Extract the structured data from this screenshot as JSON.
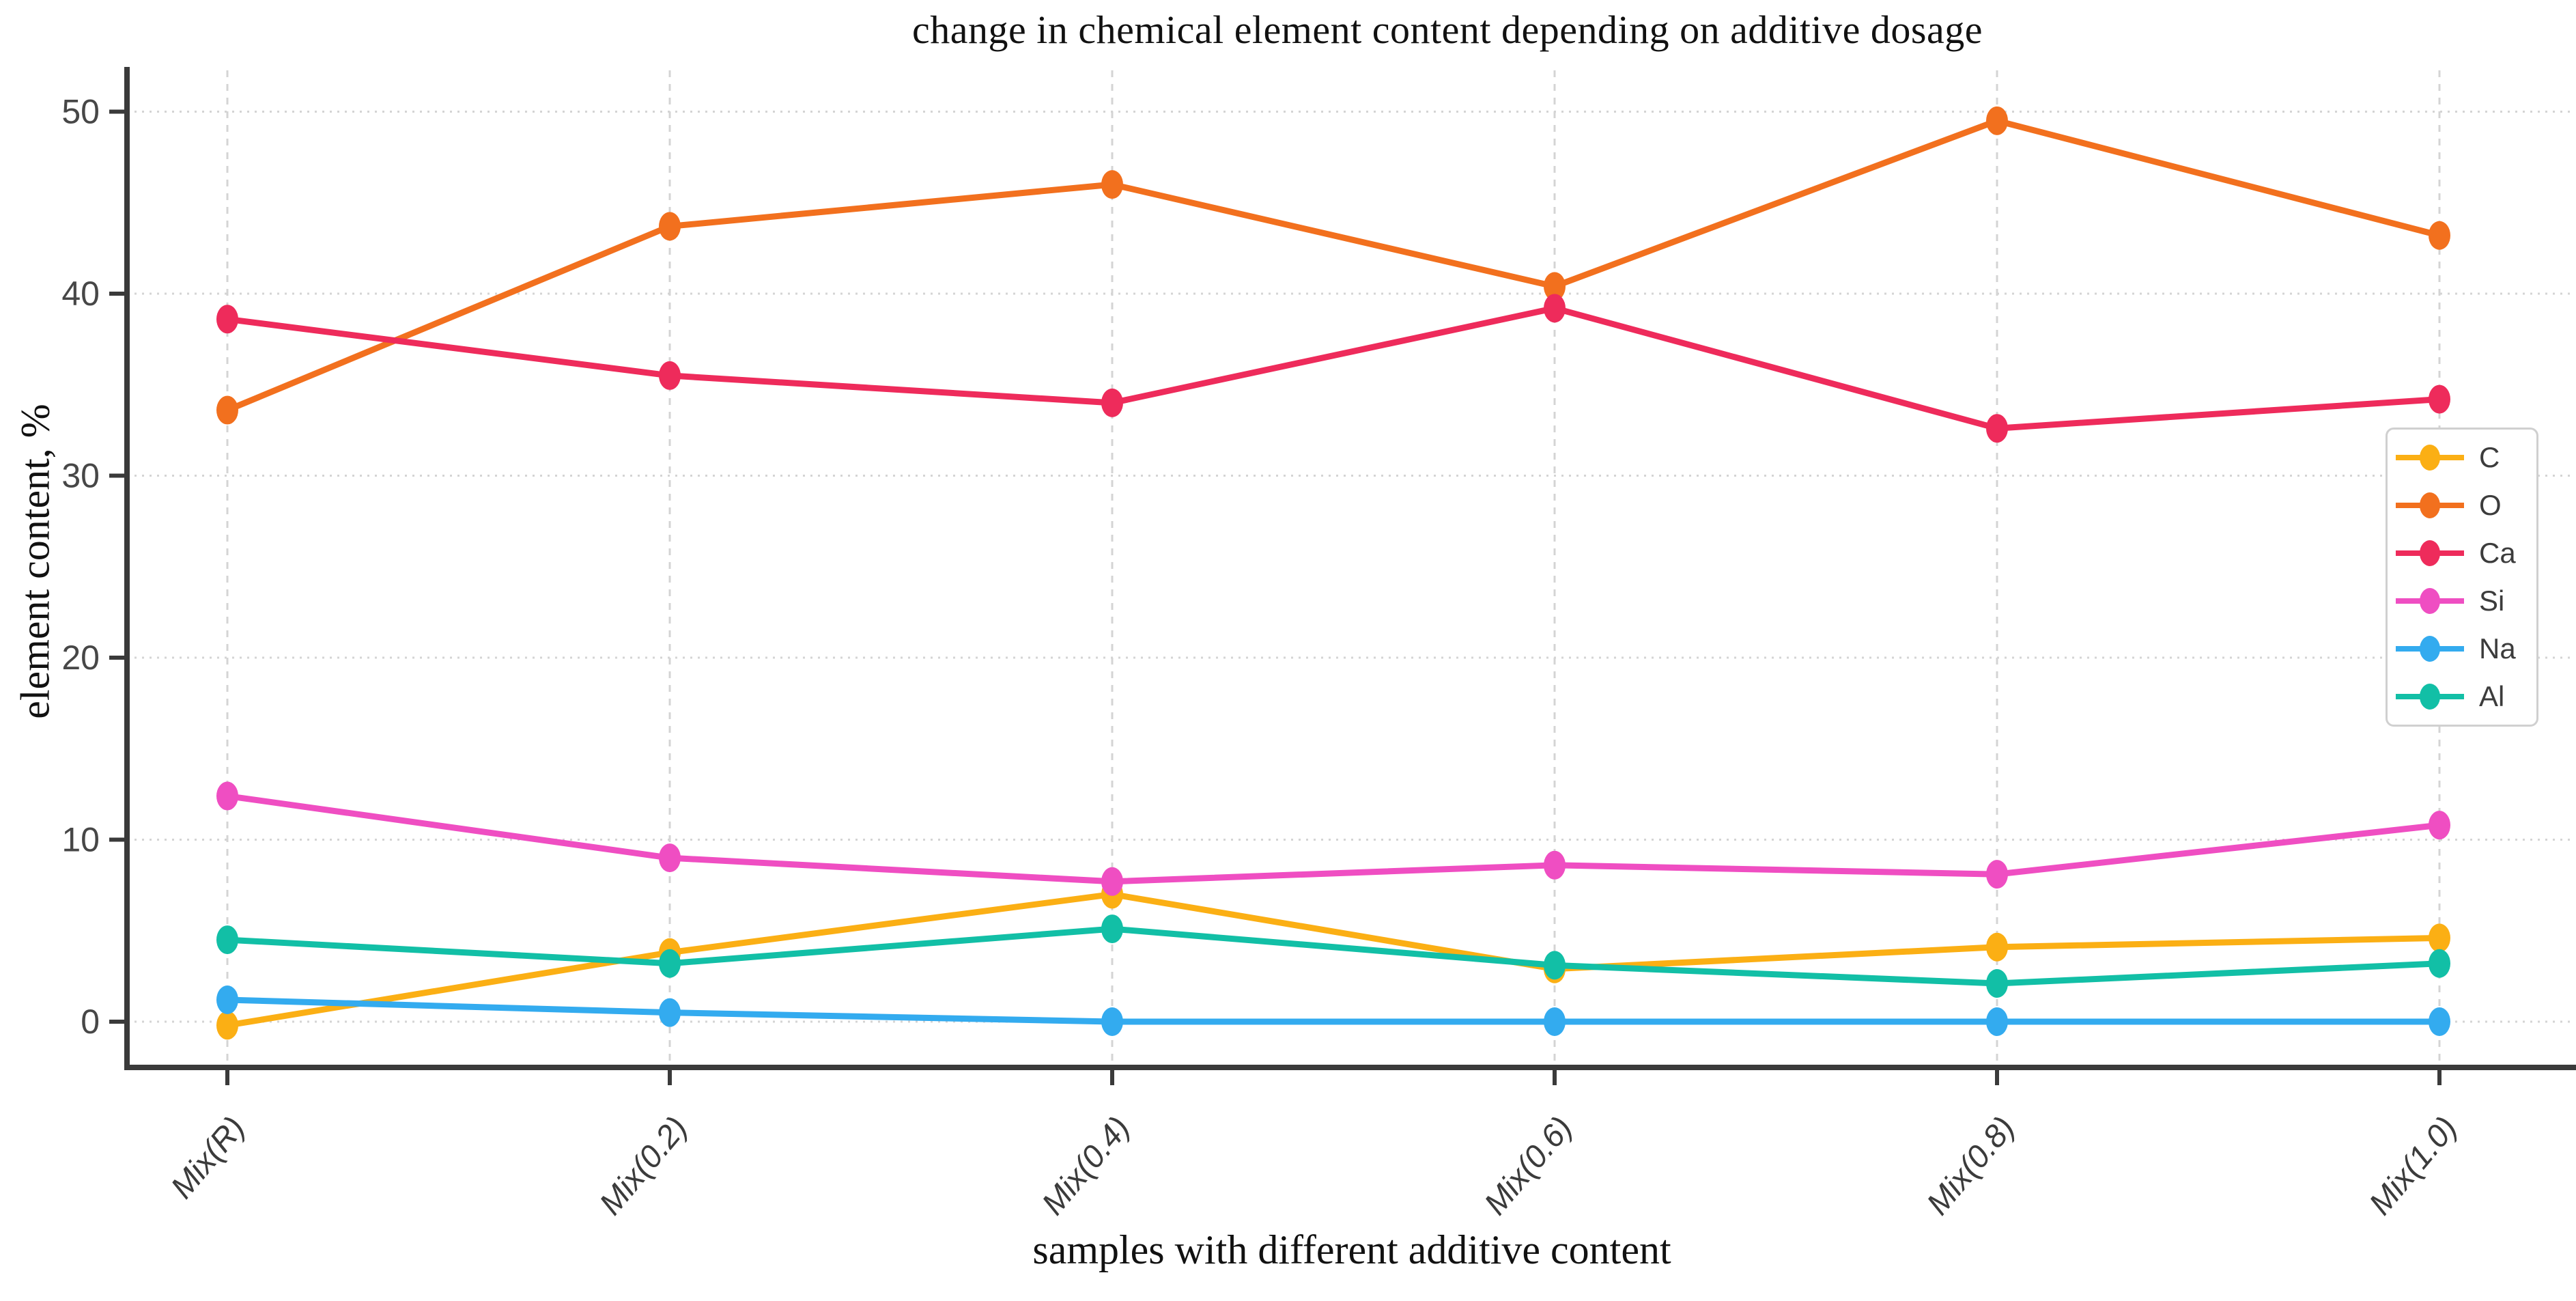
{
  "chart_data": {
    "type": "line",
    "title": "change in chemical element content depending on additive dosage",
    "xlabel": "samples with different additive content",
    "ylabel": "element content, %",
    "categories": [
      "Mix(R)",
      "Mix(0.2)",
      "Mix(0.4)",
      "Mix(0.6)",
      "Mix(0.8)",
      "Mix(1.0)"
    ],
    "yticks": [
      0,
      10,
      20,
      30,
      40,
      50
    ],
    "ylim": [
      -2.5,
      52.5
    ],
    "grid": true,
    "legend_position": "center-right",
    "series": [
      {
        "name": "C",
        "color": "#FBAF14",
        "values": [
          -0.2,
          3.8,
          7.0,
          2.9,
          4.1,
          4.6
        ]
      },
      {
        "name": "O",
        "color": "#F2701E",
        "values": [
          33.6,
          43.7,
          46.0,
          40.4,
          49.5,
          43.2
        ]
      },
      {
        "name": "Ca",
        "color": "#EE2B5B",
        "values": [
          38.6,
          35.5,
          34.0,
          39.2,
          32.6,
          34.2
        ]
      },
      {
        "name": "Si",
        "color": "#EF4EC2",
        "values": [
          12.4,
          9.0,
          7.7,
          8.6,
          8.1,
          10.8
        ]
      },
      {
        "name": "Na",
        "color": "#33ABEF",
        "values": [
          1.2,
          0.5,
          0.0,
          0.0,
          0.0,
          0.0
        ]
      },
      {
        "name": "Al",
        "color": "#12BFA6",
        "values": [
          4.5,
          3.2,
          5.1,
          3.1,
          2.1,
          3.2
        ]
      }
    ],
    "colors": {
      "grid": "#d4d4d4",
      "spine": "#3a3a3a",
      "tick_label": "#474747",
      "x_tick_label": "#3b3b3b"
    }
  }
}
